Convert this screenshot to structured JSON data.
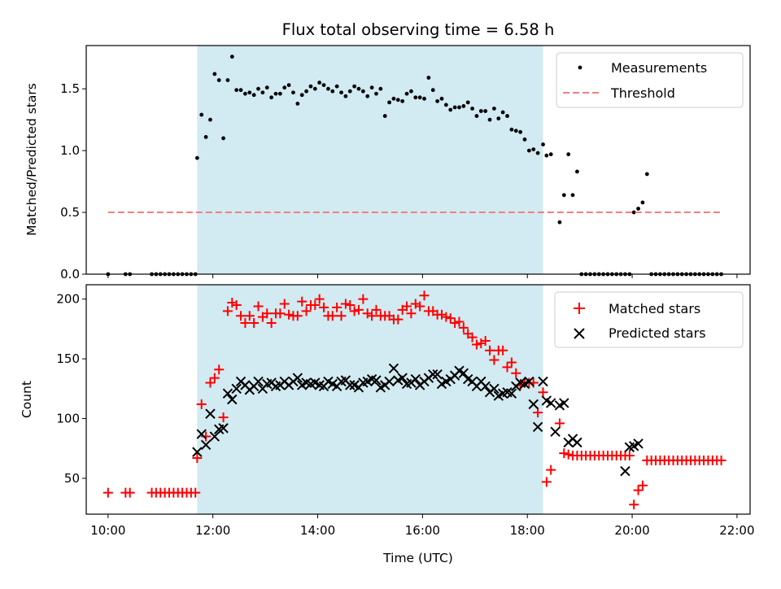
{
  "title": "Flux total observing time = 6.58 h",
  "xlabel": "Time (UTC)",
  "colors": {
    "shade": "#add8e6",
    "threshold": "#f08080",
    "matched": "#ff0000",
    "predicted": "#000000",
    "measurements": "#000000"
  },
  "chart_data": [
    {
      "type": "scatter",
      "ylabel": "Matched/Predicted stars",
      "xlim": [
        "09:35",
        "22:15"
      ],
      "ylim": [
        0,
        1.85
      ],
      "yticks": [
        "0.0",
        "0.5",
        "1.0",
        "1.5"
      ],
      "shaded_interval": [
        "11:42",
        "18:18"
      ],
      "legend": {
        "position": "top-right",
        "entries": [
          "Measurements",
          "Threshold"
        ]
      },
      "series": [
        {
          "name": "Measurements",
          "marker": "dot",
          "x": [
            "10:00",
            "10:20",
            "10:25",
            "10:50",
            "10:55",
            "11:00",
            "11:05",
            "11:10",
            "11:15",
            "11:20",
            "11:25",
            "11:30",
            "11:35",
            "11:40",
            "11:42",
            "11:47",
            "11:52",
            "11:57",
            "12:02",
            "12:07",
            "12:12",
            "12:17",
            "12:22",
            "12:27",
            "12:32",
            "12:37",
            "12:42",
            "12:47",
            "12:52",
            "12:57",
            "13:02",
            "13:07",
            "13:12",
            "13:17",
            "13:22",
            "13:27",
            "13:32",
            "13:37",
            "13:42",
            "13:47",
            "13:52",
            "13:57",
            "14:02",
            "14:07",
            "14:12",
            "14:17",
            "14:22",
            "14:27",
            "14:32",
            "14:37",
            "14:42",
            "14:47",
            "14:52",
            "14:57",
            "15:02",
            "15:07",
            "15:12",
            "15:17",
            "15:22",
            "15:27",
            "15:32",
            "15:37",
            "15:42",
            "15:47",
            "15:52",
            "15:57",
            "16:02",
            "16:07",
            "16:12",
            "16:17",
            "16:22",
            "16:27",
            "16:32",
            "16:37",
            "16:42",
            "16:47",
            "16:52",
            "16:57",
            "17:02",
            "17:07",
            "17:12",
            "17:17",
            "17:22",
            "17:27",
            "17:32",
            "17:37",
            "17:42",
            "17:47",
            "17:52",
            "17:57",
            "18:02",
            "18:07",
            "18:12",
            "18:18",
            "18:22",
            "18:27",
            "18:37",
            "18:42",
            "18:47",
            "18:52",
            "18:57",
            "19:02",
            "19:07",
            "19:12",
            "19:17",
            "19:22",
            "19:27",
            "19:32",
            "19:37",
            "19:42",
            "19:47",
            "19:52",
            "19:57",
            "20:02",
            "20:07",
            "20:12",
            "20:17",
            "20:22",
            "20:27",
            "20:32",
            "20:37",
            "20:42",
            "20:47",
            "20:52",
            "20:57",
            "21:02",
            "21:07",
            "21:12",
            "21:17",
            "21:22",
            "21:27",
            "21:32",
            "21:37",
            "21:42"
          ],
          "y": [
            0,
            0,
            0,
            0,
            0,
            0,
            0,
            0,
            0,
            0,
            0,
            0,
            0,
            0,
            0.94,
            1.29,
            1.11,
            1.25,
            1.62,
            1.57,
            1.1,
            1.57,
            1.76,
            1.49,
            1.49,
            1.46,
            1.47,
            1.45,
            1.5,
            1.47,
            1.51,
            1.43,
            1.46,
            1.46,
            1.51,
            1.53,
            1.47,
            1.38,
            1.45,
            1.48,
            1.52,
            1.5,
            1.55,
            1.53,
            1.5,
            1.48,
            1.52,
            1.47,
            1.44,
            1.48,
            1.52,
            1.5,
            1.48,
            1.44,
            1.51,
            1.46,
            1.5,
            1.28,
            1.39,
            1.42,
            1.41,
            1.4,
            1.46,
            1.48,
            1.43,
            1.43,
            1.42,
            1.59,
            1.49,
            1.4,
            1.42,
            1.37,
            1.33,
            1.35,
            1.35,
            1.36,
            1.39,
            1.34,
            1.28,
            1.32,
            1.32,
            1.25,
            1.34,
            1.26,
            1.31,
            1.28,
            1.17,
            1.16,
            1.15,
            1.09,
            1,
            1.01,
            0.98,
            1.05,
            0.96,
            0.97,
            0.42,
            0.64,
            0.97,
            0.64,
            0.83,
            0,
            0,
            0,
            0,
            0,
            0,
            0,
            0,
            0,
            0,
            0,
            0,
            0.5,
            0.53,
            0.58,
            0.81,
            0,
            0,
            0,
            0,
            0,
            0,
            0,
            0,
            0,
            0,
            0,
            0,
            0,
            0,
            0,
            0,
            0
          ]
        },
        {
          "name": "Threshold",
          "style": "dashed",
          "x": [
            "10:00",
            "21:42"
          ],
          "y": [
            0.5,
            0.5
          ]
        }
      ]
    },
    {
      "type": "scatter",
      "ylabel": "Count",
      "xlim": [
        "09:35",
        "22:15"
      ],
      "ylim": [
        20,
        212
      ],
      "yticks": [
        "50",
        "100",
        "150",
        "200"
      ],
      "xticks": [
        "10:00",
        "12:00",
        "14:00",
        "16:00",
        "18:00",
        "20:00",
        "22:00"
      ],
      "shaded_interval": [
        "11:42",
        "18:18"
      ],
      "legend": {
        "position": "top-right",
        "entries": [
          "Matched stars",
          "Predicted stars"
        ]
      },
      "series": [
        {
          "name": "Matched stars",
          "marker": "+",
          "x": [
            "10:00",
            "10:20",
            "10:25",
            "10:50",
            "10:55",
            "11:00",
            "11:05",
            "11:10",
            "11:15",
            "11:20",
            "11:25",
            "11:30",
            "11:35",
            "11:40",
            "11:42",
            "11:47",
            "11:52",
            "11:57",
            "12:02",
            "12:07",
            "12:12",
            "12:17",
            "12:22",
            "12:27",
            "12:32",
            "12:37",
            "12:42",
            "12:47",
            "12:52",
            "12:57",
            "13:02",
            "13:07",
            "13:12",
            "13:17",
            "13:22",
            "13:27",
            "13:32",
            "13:37",
            "13:42",
            "13:47",
            "13:52",
            "13:57",
            "14:02",
            "14:07",
            "14:12",
            "14:17",
            "14:22",
            "14:27",
            "14:32",
            "14:37",
            "14:42",
            "14:47",
            "14:52",
            "14:57",
            "15:02",
            "15:07",
            "15:12",
            "15:17",
            "15:22",
            "15:27",
            "15:32",
            "15:37",
            "15:42",
            "15:47",
            "15:52",
            "15:57",
            "16:02",
            "16:07",
            "16:12",
            "16:17",
            "16:22",
            "16:27",
            "16:32",
            "16:37",
            "16:42",
            "16:47",
            "16:52",
            "16:57",
            "17:02",
            "17:07",
            "17:12",
            "17:17",
            "17:22",
            "17:27",
            "17:32",
            "17:37",
            "17:42",
            "17:47",
            "17:52",
            "17:57",
            "18:02",
            "18:07",
            "18:12",
            "18:18",
            "18:22",
            "18:27",
            "18:37",
            "18:42",
            "18:47",
            "18:52",
            "18:57",
            "19:02",
            "19:07",
            "19:12",
            "19:17",
            "19:22",
            "19:27",
            "19:32",
            "19:37",
            "19:42",
            "19:47",
            "19:52",
            "19:57",
            "20:02",
            "20:07",
            "20:12",
            "20:17",
            "20:22",
            "20:27",
            "20:32",
            "20:37",
            "20:42",
            "20:47",
            "20:52",
            "20:57",
            "21:02",
            "21:07",
            "21:12",
            "21:17",
            "21:22",
            "21:27",
            "21:32",
            "21:37",
            "21:42"
          ],
          "y": [
            38,
            38,
            38,
            38,
            38,
            38,
            38,
            38,
            38,
            38,
            38,
            38,
            38,
            38,
            67,
            112,
            85,
            130,
            134,
            141,
            101,
            190,
            197,
            195,
            186,
            180,
            186,
            180,
            194,
            185,
            188,
            180,
            188,
            188,
            196,
            187,
            186,
            186,
            198,
            190,
            195,
            195,
            200,
            193,
            186,
            186,
            193,
            186,
            196,
            195,
            190,
            191,
            200,
            188,
            186,
            191,
            186,
            186,
            186,
            183,
            183,
            191,
            194,
            188,
            196,
            194,
            203,
            190,
            190,
            187,
            187,
            185,
            184,
            180,
            181,
            176,
            171,
            168,
            162,
            163,
            165,
            157,
            149,
            157,
            157,
            143,
            147,
            138,
            128,
            130,
            130,
            130,
            105,
            122,
            47,
            57,
            96,
            71,
            70,
            69,
            69,
            69,
            69,
            69,
            69,
            69,
            69,
            69,
            69,
            69,
            69,
            69,
            69,
            28,
            40,
            44,
            65,
            65,
            65,
            65,
            65,
            65,
            65,
            65,
            65,
            65,
            65,
            65,
            65,
            65,
            65,
            65,
            65,
            65
          ]
        },
        {
          "name": "Predicted stars",
          "marker": "x",
          "x": [
            "11:42",
            "11:47",
            "11:52",
            "11:57",
            "12:02",
            "12:07",
            "12:12",
            "12:17",
            "12:22",
            "12:27",
            "12:32",
            "12:37",
            "12:42",
            "12:47",
            "12:52",
            "12:57",
            "13:02",
            "13:07",
            "13:12",
            "13:17",
            "13:22",
            "13:27",
            "13:32",
            "13:37",
            "13:42",
            "13:47",
            "13:52",
            "13:57",
            "14:02",
            "14:07",
            "14:12",
            "14:17",
            "14:22",
            "14:27",
            "14:32",
            "14:37",
            "14:42",
            "14:47",
            "14:52",
            "14:57",
            "15:02",
            "15:07",
            "15:12",
            "15:17",
            "15:22",
            "15:27",
            "15:32",
            "15:37",
            "15:42",
            "15:47",
            "15:52",
            "15:57",
            "16:02",
            "16:07",
            "16:12",
            "16:17",
            "16:22",
            "16:27",
            "16:32",
            "16:37",
            "16:42",
            "16:47",
            "16:52",
            "16:57",
            "17:02",
            "17:07",
            "17:12",
            "17:17",
            "17:22",
            "17:27",
            "17:32",
            "17:37",
            "17:42",
            "17:47",
            "17:52",
            "17:57",
            "18:02",
            "18:07",
            "18:12",
            "18:18",
            "18:22",
            "18:27",
            "18:32",
            "18:37",
            "18:42",
            "18:47",
            "18:52",
            "18:57",
            "19:52",
            "19:57",
            "20:02",
            "20:07"
          ],
          "y": [
            72,
            87,
            78,
            104,
            85,
            91,
            92,
            121,
            116,
            125,
            131,
            128,
            124,
            127,
            131,
            125,
            129,
            130,
            127,
            128,
            131,
            128,
            131,
            134,
            128,
            130,
            129,
            130,
            128,
            127,
            131,
            129,
            127,
            131,
            132,
            128,
            128,
            126,
            130,
            131,
            133,
            132,
            126,
            128,
            131,
            142,
            132,
            134,
            129,
            130,
            133,
            128,
            131,
            134,
            137,
            137,
            129,
            131,
            133,
            136,
            140,
            138,
            133,
            131,
            127,
            131,
            127,
            122,
            125,
            119,
            121,
            122,
            121,
            127,
            130,
            129,
            131,
            112,
            93,
            131,
            115,
            113,
            89,
            111,
            113,
            80,
            83,
            80,
            56,
            76,
            77,
            79
          ]
        }
      ]
    }
  ]
}
